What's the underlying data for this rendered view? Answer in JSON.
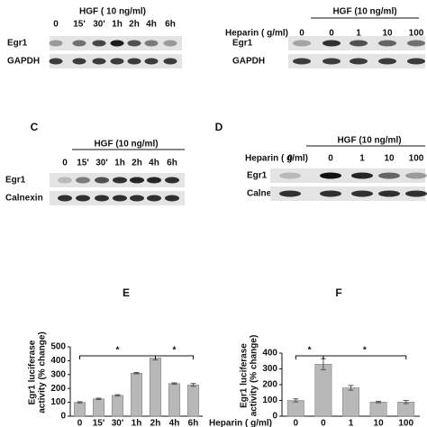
{
  "panels": {
    "A": {
      "treatment": "HGF ( 10 ng/ml)",
      "lanes": [
        "0",
        "15'",
        "30'",
        "1h",
        "2h",
        "4h",
        "6h"
      ],
      "rows": [
        "Egr1",
        "GAPDH"
      ]
    },
    "B": {
      "treatment": "HGF (10 ng/ml)",
      "lane_header": "Heparin (  g/ml)",
      "lanes": [
        "0",
        "0",
        "1",
        "10",
        "100"
      ],
      "rows": [
        "Egr1",
        "GAPDH"
      ]
    },
    "C": {
      "label": "C",
      "treatment": "HGF (10 ng/ml)",
      "lanes": [
        "0",
        "15'",
        "30'",
        "1h",
        "2h",
        "4h",
        "6h"
      ],
      "rows": [
        "Egr1",
        "Calnexin"
      ]
    },
    "D": {
      "label": "D",
      "treatment": "HGF (10 ng/ml)",
      "lane_header": "Heparin (  g/ml)",
      "lanes": [
        "0",
        "0",
        "1",
        "10",
        "100"
      ],
      "rows": [
        "Egr1",
        "Calnexin"
      ]
    }
  },
  "chart_data": [
    {
      "type": "bar",
      "label": "E",
      "y_label": [
        "Egr1 luciferase",
        "activity (% change)"
      ],
      "categories": [
        "0",
        "15'",
        "30'",
        "1h",
        "2h",
        "4h",
        "6h"
      ],
      "values": [
        100,
        125,
        150,
        310,
        420,
        235,
        225
      ],
      "errors": [
        5,
        5,
        5,
        5,
        15,
        5,
        10
      ],
      "color": "#b8b8b8",
      "ylim": [
        0,
        500
      ],
      "yticks": [
        0,
        100,
        200,
        300,
        400,
        500
      ],
      "annotations": [
        "*",
        "*"
      ]
    },
    {
      "type": "bar",
      "label": "F",
      "y_label": [
        "Egr1 luciferase",
        "activity (% change)"
      ],
      "x_header": "Heparin (  g/ml)",
      "categories": [
        "0",
        "0",
        "1",
        "10",
        "100"
      ],
      "values": [
        100,
        330,
        180,
        90,
        90
      ],
      "errors": [
        10,
        35,
        15,
        5,
        10
      ],
      "color": "#b8b8b8",
      "ylim": [
        0,
        400
      ],
      "yticks": [
        0,
        100,
        200,
        300,
        400
      ],
      "annotations": [
        "*",
        "*"
      ]
    }
  ]
}
